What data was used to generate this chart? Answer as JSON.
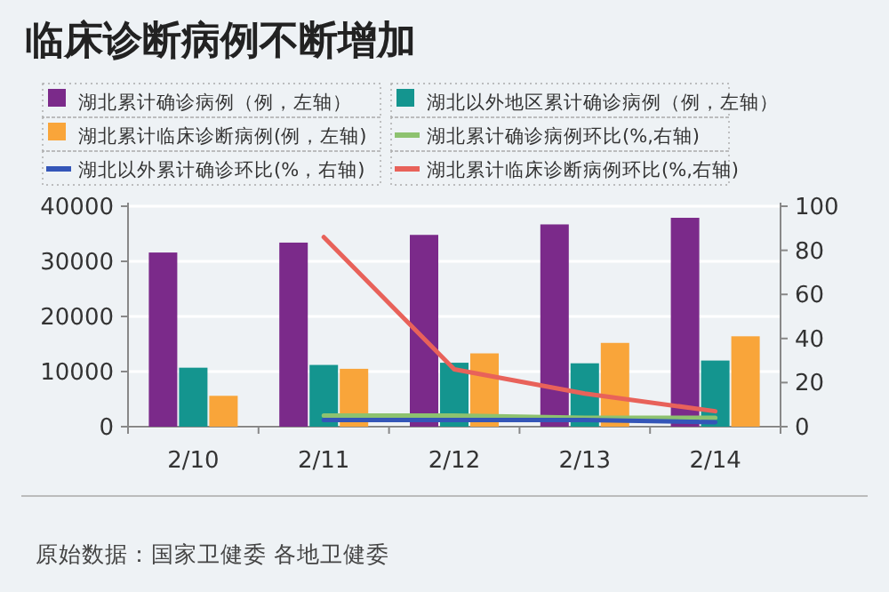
{
  "chart_data": {
    "type": "bar",
    "title": "临床诊断病例不断增加",
    "categories": [
      "2/10",
      "2/11",
      "2/12",
      "2/13",
      "2/14"
    ],
    "series": [
      {
        "name": "湖北累计确诊病例（例，左轴）",
        "color": "#7b2a8a",
        "values": [
          31600,
          33400,
          34800,
          36700,
          37900
        ]
      },
      {
        "name": "湖北以外地区累计确诊病例（例，左轴）",
        "color": "#14958f",
        "values": [
          10700,
          11200,
          11600,
          11500,
          12000
        ]
      },
      {
        "name": "湖北累计临床诊断病例(例，左轴)",
        "color": "#f9a53a",
        "values": [
          5600,
          10500,
          13300,
          15200,
          16400
        ]
      },
      {
        "name": "湖北累计确诊病例环比(%,右轴)",
        "type": "line",
        "axis": "y2",
        "color": "#8dc26f",
        "values": [
          null,
          5,
          5,
          4,
          4
        ]
      },
      {
        "name": "湖北以外累计确诊环比(%，右轴)",
        "type": "line",
        "axis": "y2",
        "color": "#3456b8",
        "values": [
          null,
          3,
          3,
          3,
          2
        ]
      },
      {
        "name": "湖北累计临床诊断病例环比(%,右轴)",
        "type": "line",
        "axis": "y2",
        "color": "#e8625a",
        "values": [
          null,
          86,
          26,
          15,
          7
        ]
      }
    ],
    "ylim": [
      0,
      40000
    ],
    "yticks": [
      0,
      10000,
      20000,
      30000,
      40000
    ],
    "y2lim": [
      0,
      100
    ],
    "y2ticks": [
      0,
      20,
      40,
      60,
      80,
      100
    ],
    "grid": "y",
    "legend": "top",
    "annotations": [
      "原始数据：国家卫健委 各地卫健委"
    ]
  }
}
